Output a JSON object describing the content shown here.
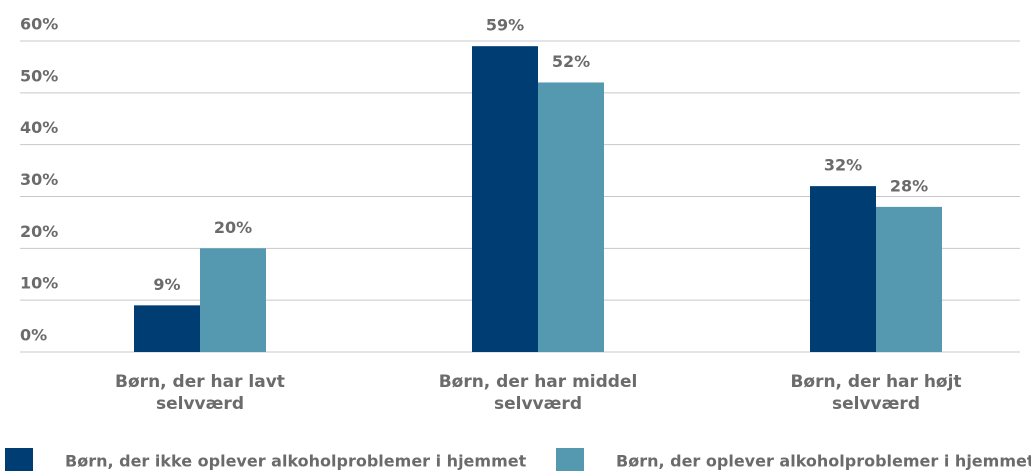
{
  "chart_data": {
    "type": "bar",
    "categories": [
      "Børn, der har lavt selvværd",
      "Børn, der har middel selvværd",
      "Børn, der har højt selvværd"
    ],
    "series": [
      {
        "name": "Børn, der ikke oplever alkoholproblemer i hjemmet",
        "color": "#003d73",
        "values": [
          9,
          59,
          32
        ],
        "value_labels": [
          "9%",
          "59%",
          "32%"
        ]
      },
      {
        "name": "Børn, der oplever alkoholproblemer i hjemmet",
        "color": "#5499b0",
        "values": [
          20,
          52,
          28
        ],
        "value_labels": [
          "20%",
          "52%",
          "28%"
        ]
      }
    ],
    "ylim": [
      0,
      60
    ],
    "yticks": [
      {
        "value": 0,
        "label": "0%"
      },
      {
        "value": 10,
        "label": "10%"
      },
      {
        "value": 20,
        "label": "20%"
      },
      {
        "value": 30,
        "label": "30%"
      },
      {
        "value": 40,
        "label": "40%"
      },
      {
        "value": 50,
        "label": "50%"
      },
      {
        "value": 60,
        "label": "60%"
      }
    ],
    "grid": true,
    "legend": "bottom"
  }
}
